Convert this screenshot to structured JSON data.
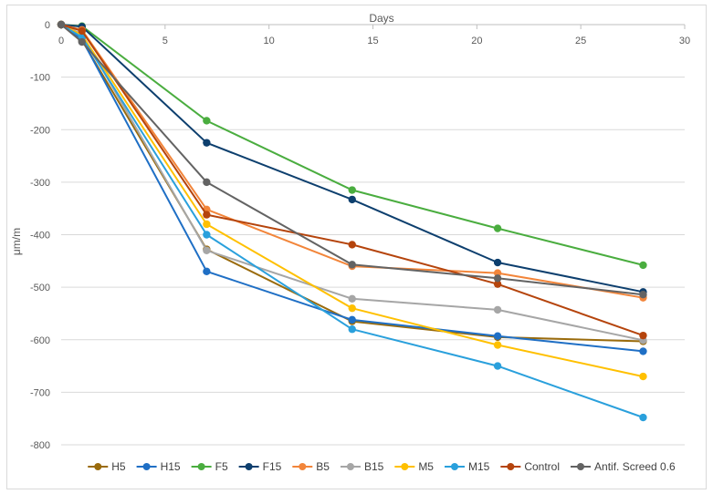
{
  "chart_data": {
    "type": "line",
    "title": "",
    "xlabel": "Days",
    "ylabel": "μm/m",
    "xlim": [
      0,
      30
    ],
    "ylim": [
      -800,
      0
    ],
    "x_ticks": [
      0,
      5,
      10,
      15,
      20,
      25,
      30
    ],
    "y_ticks": [
      0,
      -100,
      -200,
      -300,
      -400,
      -500,
      -600,
      -700,
      -800
    ],
    "grid": "horizontal",
    "legend_position": "bottom",
    "x": [
      0,
      1,
      7,
      14,
      21,
      28
    ],
    "series": [
      {
        "name": "H5",
        "color": "#9a6b0c",
        "values": [
          0,
          -30,
          -428,
          -565,
          -595,
          -603
        ]
      },
      {
        "name": "H15",
        "color": "#1f6fc5",
        "values": [
          0,
          -28,
          -470,
          -562,
          -593,
          -622
        ]
      },
      {
        "name": "F5",
        "color": "#4aad3f",
        "values": [
          0,
          -3,
          -183,
          -315,
          -388,
          -458
        ]
      },
      {
        "name": "F15",
        "color": "#0d3f6e",
        "values": [
          0,
          -4,
          -225,
          -333,
          -453,
          -509
        ]
      },
      {
        "name": "B5",
        "color": "#f2853a",
        "values": [
          0,
          -10,
          -352,
          -460,
          -473,
          -520
        ]
      },
      {
        "name": "B15",
        "color": "#a6a6a6",
        "values": [
          0,
          -18,
          -430,
          -522,
          -543,
          -601
        ]
      },
      {
        "name": "M5",
        "color": "#ffc000",
        "values": [
          0,
          -20,
          -380,
          -540,
          -610,
          -670
        ]
      },
      {
        "name": "M15",
        "color": "#2aa0dc",
        "values": [
          0,
          -24,
          -400,
          -580,
          -650,
          -748
        ]
      },
      {
        "name": "Control",
        "color": "#b5440c",
        "values": [
          0,
          -12,
          -362,
          -419,
          -494,
          -592
        ]
      },
      {
        "name": "Antif. Screed 0.6",
        "color": "#636363",
        "values": [
          0,
          -33,
          -300,
          -457,
          -483,
          -514
        ]
      }
    ]
  }
}
